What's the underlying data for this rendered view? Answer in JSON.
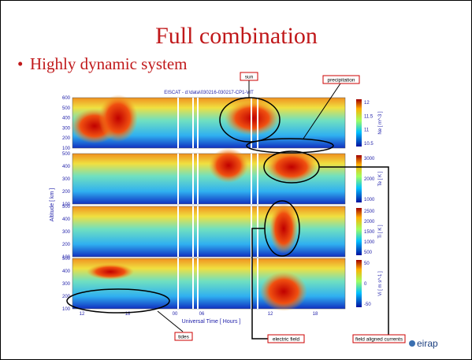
{
  "slide": {
    "title": "Full combination",
    "bullet": "Highly dynamic system",
    "plot": {
      "title": "EISCAT - d:\\data\\030216-030217-CP1-VIT",
      "y_label": "Altitude [ km ]",
      "x_label": "Universal Time [ Hours ]",
      "x_ticks": [
        "12",
        "18",
        "00",
        "06",
        "12",
        "18"
      ],
      "panels": [
        {
          "y_ticks": [
            "600",
            "500",
            "400",
            "300",
            "200",
            "100"
          ],
          "colorbar_ticks": [
            "12",
            "11.5",
            "11",
            "10.5"
          ],
          "colorbar_label": "Ne [ m^-3 ]"
        },
        {
          "y_ticks": [
            "500",
            "400",
            "300",
            "200",
            "100"
          ],
          "colorbar_ticks": [
            "3000",
            "2000",
            "1000"
          ],
          "colorbar_label": "Te [ K ]"
        },
        {
          "y_ticks": [
            "500",
            "400",
            "300",
            "200",
            "100"
          ],
          "colorbar_ticks": [
            "2500",
            "2000",
            "1500",
            "1000",
            "500"
          ],
          "colorbar_label": "Ti [ K ]"
        },
        {
          "y_ticks": [
            "500",
            "400",
            "300",
            "200",
            "100"
          ],
          "colorbar_ticks": [
            "50",
            "0",
            "-50"
          ],
          "colorbar_label": "Vi [ m s^-1 ]"
        }
      ]
    },
    "annotations": {
      "sun": "sun",
      "precipitation": "precipitation",
      "tides": "tides",
      "electric_field": "electric field",
      "field_aligned_currents": "field aligned currents"
    },
    "logo": "eirap"
  }
}
